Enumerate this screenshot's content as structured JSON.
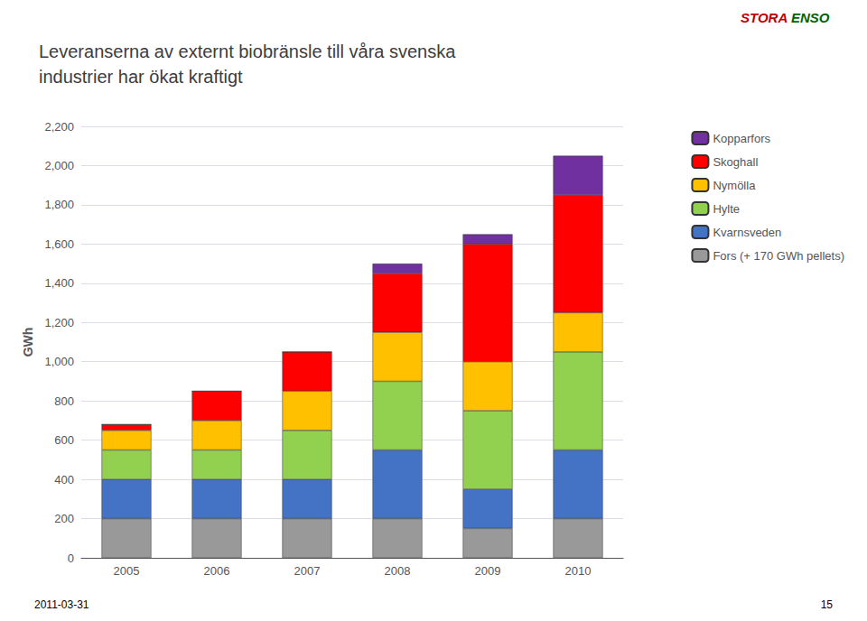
{
  "chart_data": {
    "type": "bar",
    "title": "Leveranserna av externt biobränsle till våra svenska\nindustrier har ökat kraftigt",
    "ylabel": "GWh",
    "categories": [
      "2005",
      "2006",
      "2007",
      "2008",
      "2009",
      "2010"
    ],
    "series": [
      {
        "name": "Fors (+ 170 GWh pellets)",
        "color": "#999999",
        "values": [
          200,
          200,
          200,
          200,
          150,
          200
        ]
      },
      {
        "name": "Kvarnsveden",
        "color": "#4472C4",
        "values": [
          200,
          200,
          200,
          350,
          200,
          350
        ]
      },
      {
        "name": "Hylte",
        "color": "#92D050",
        "values": [
          150,
          150,
          250,
          350,
          400,
          500
        ]
      },
      {
        "name": "Nymölla",
        "color": "#FFC000",
        "values": [
          100,
          150,
          200,
          250,
          250,
          200
        ]
      },
      {
        "name": "Skoghall",
        "color": "#FF0000",
        "values": [
          30,
          150,
          200,
          300,
          600,
          600
        ]
      },
      {
        "name": "Kopparfors",
        "color": "#7030A0",
        "values": [
          0,
          0,
          0,
          50,
          50,
          200
        ]
      }
    ],
    "stacked": true,
    "ylim": [
      0,
      2200
    ],
    "yticks": [
      0,
      200,
      400,
      600,
      800,
      1000,
      1200,
      1400,
      1600,
      1800,
      2000,
      2200
    ],
    "grid": true,
    "legend": "right",
    "annotations": [
      {
        "text": "2011-03-31"
      },
      {
        "text": "15"
      },
      {
        "text": "STORA",
        "color": "#C00000"
      },
      {
        "text": "ENSO",
        "color": "#006400"
      }
    ]
  }
}
